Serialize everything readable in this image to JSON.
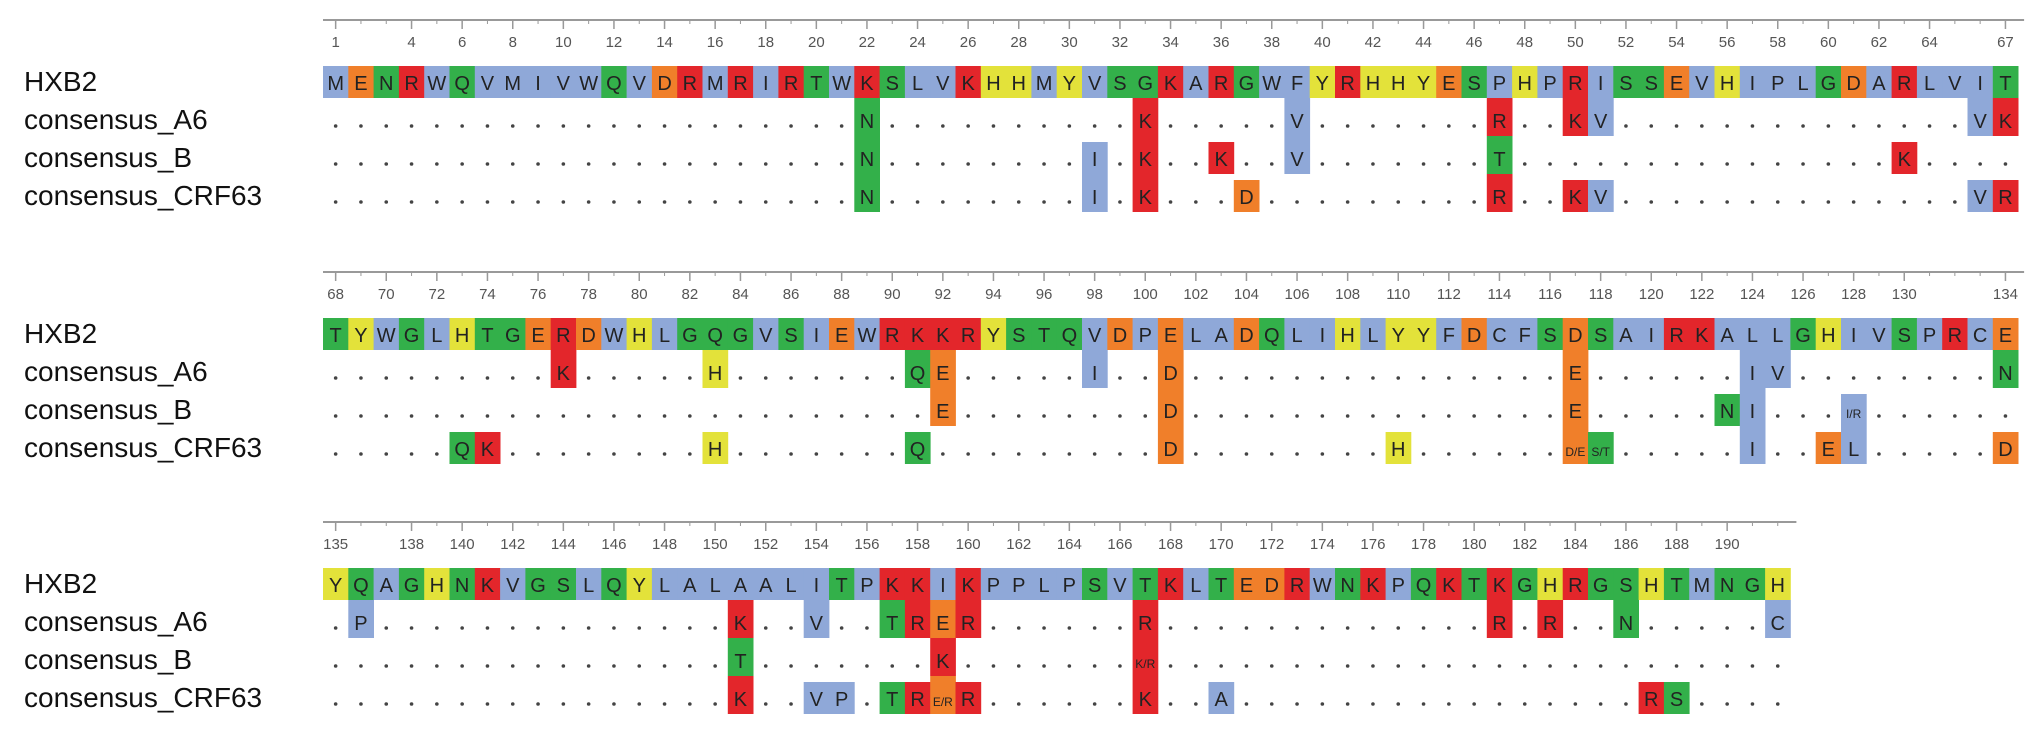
{
  "colors": {
    "green": "#33b04a",
    "blue": "#8fa8d8",
    "yellow": "#e3e23a",
    "red": "#e3262b",
    "orange": "#f07f2a",
    "dot": "#444444",
    "ruler": "#999999"
  },
  "residue_colors": {
    "green": "GNSTQ",
    "blue": "AVLIMWFCP",
    "yellow": "HY",
    "red": "KR",
    "orange": "DE"
  },
  "sequence_names": [
    "HXB2",
    "consensus_A6",
    "consensus_B",
    "consensus_CRF63"
  ],
  "blocks": [
    {
      "start": 1,
      "reference": "MENRWQVMIVWQVDRMRIRTWKSLVKHHMYVSGKARGWFYRHHYESPHPRISSEVHIPLGDARLVIT",
      "ticks": [
        "1",
        "4",
        "6",
        "8",
        "10",
        "12",
        "14",
        "16",
        "18",
        "20",
        "22",
        "24",
        "26",
        "28",
        "30",
        "32",
        "34",
        "36",
        "38",
        "40",
        "42",
        "44",
        "46",
        "48",
        "50",
        "52",
        "54",
        "56",
        "58",
        "60",
        "62",
        "64",
        "67"
      ],
      "variants": [
        {
          "name": "consensus_A6",
          "changes": [
            [
              22,
              "N"
            ],
            [
              33,
              "K"
            ],
            [
              39,
              "V"
            ],
            [
              47,
              "R"
            ],
            [
              50,
              "K"
            ],
            [
              51,
              "V"
            ],
            [
              66,
              "V"
            ],
            [
              67,
              "K"
            ]
          ]
        },
        {
          "name": "consensus_B",
          "changes": [
            [
              22,
              "N"
            ],
            [
              31,
              "I"
            ],
            [
              33,
              "K"
            ],
            [
              36,
              "K"
            ],
            [
              39,
              "V"
            ],
            [
              47,
              "T"
            ],
            [
              63,
              "K"
            ]
          ]
        },
        {
          "name": "consensus_CRF63",
          "changes": [
            [
              22,
              "N"
            ],
            [
              31,
              "I"
            ],
            [
              33,
              "K"
            ],
            [
              37,
              "D"
            ],
            [
              47,
              "R"
            ],
            [
              50,
              "K"
            ],
            [
              51,
              "V"
            ],
            [
              66,
              "V"
            ],
            [
              67,
              "R"
            ]
          ]
        }
      ]
    },
    {
      "start": 68,
      "reference": "TYWGLHTGERDWHLGQGVSIEWRKKRYSTQVDPELADQLIHLYYFDCFSDSAIRKALLGHIVSPRCE",
      "ticks": [
        "68",
        "70",
        "72",
        "74",
        "76",
        "78",
        "80",
        "82",
        "84",
        "86",
        "88",
        "90",
        "92",
        "94",
        "96",
        "98",
        "100",
        "102",
        "104",
        "106",
        "108",
        "110",
        "112",
        "114",
        "116",
        "118",
        "120",
        "122",
        "124",
        "126",
        "128",
        "130",
        "134"
      ],
      "variants": [
        {
          "name": "consensus_A6",
          "changes": [
            [
              77,
              "K"
            ],
            [
              83,
              "H"
            ],
            [
              91,
              "Q"
            ],
            [
              92,
              "E"
            ],
            [
              98,
              "I"
            ],
            [
              101,
              "D"
            ],
            [
              117,
              "E"
            ],
            [
              124,
              "I"
            ],
            [
              125,
              "V"
            ],
            [
              134,
              "N"
            ]
          ]
        },
        {
          "name": "consensus_B",
          "changes": [
            [
              92,
              "E"
            ],
            [
              101,
              "D"
            ],
            [
              117,
              "E"
            ],
            [
              123,
              "N"
            ],
            [
              124,
              "I"
            ],
            [
              128,
              "I/R"
            ]
          ]
        },
        {
          "name": "consensus_CRF63",
          "changes": [
            [
              73,
              "Q"
            ],
            [
              74,
              "K"
            ],
            [
              83,
              "H"
            ],
            [
              91,
              "Q"
            ],
            [
              101,
              "D"
            ],
            [
              110,
              "H"
            ],
            [
              117,
              "D/E"
            ],
            [
              118,
              "S/T"
            ],
            [
              124,
              "I"
            ],
            [
              127,
              "E"
            ],
            [
              128,
              "L"
            ],
            [
              134,
              "D"
            ]
          ]
        }
      ]
    },
    {
      "start": 135,
      "reference": "YQAGHNKVGSLQYLALAALITPKKIKPPLPSVTKLTEDRWNKPQKTKGHRGSHTMNGH",
      "ticks": [
        "135",
        "138",
        "140",
        "142",
        "144",
        "146",
        "148",
        "150",
        "152",
        "154",
        "156",
        "158",
        "160",
        "162",
        "164",
        "166",
        "168",
        "170",
        "172",
        "174",
        "176",
        "178",
        "180",
        "182",
        "184",
        "186",
        "188",
        "190"
      ],
      "variants": [
        {
          "name": "consensus_A6",
          "changes": [
            [
              136,
              "P"
            ],
            [
              151,
              "K"
            ],
            [
              154,
              "V"
            ],
            [
              157,
              "T"
            ],
            [
              158,
              "R"
            ],
            [
              159,
              "E"
            ],
            [
              160,
              "R"
            ],
            [
              167,
              "R"
            ],
            [
              181,
              "R"
            ],
            [
              183,
              "R"
            ],
            [
              186,
              "N"
            ],
            [
              192,
              "C"
            ]
          ]
        },
        {
          "name": "consensus_B",
          "changes": [
            [
              151,
              "T"
            ],
            [
              159,
              "K"
            ],
            [
              167,
              "K/R"
            ]
          ]
        },
        {
          "name": "consensus_CRF63",
          "changes": [
            [
              151,
              "K"
            ],
            [
              154,
              "V"
            ],
            [
              155,
              "P"
            ],
            [
              157,
              "T"
            ],
            [
              158,
              "R"
            ],
            [
              159,
              "E/R"
            ],
            [
              160,
              "R"
            ],
            [
              167,
              "K"
            ],
            [
              170,
              "A"
            ],
            [
              187,
              "R"
            ],
            [
              188,
              "S"
            ]
          ]
        }
      ]
    }
  ]
}
